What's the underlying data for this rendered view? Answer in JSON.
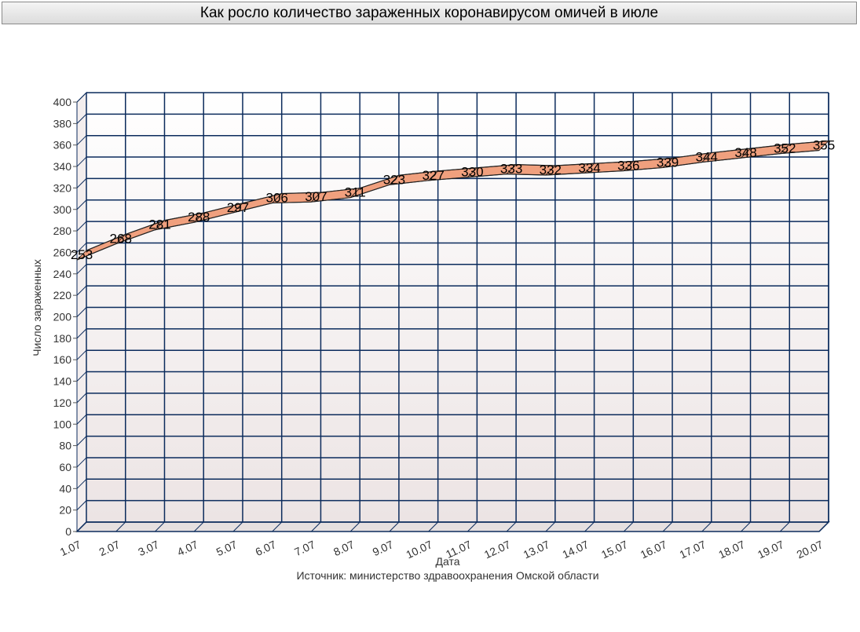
{
  "chart_data": {
    "type": "area",
    "title": "Как росло количество зараженных коронавирусом омичей в июле",
    "xlabel": "Дата",
    "ylabel": "Число зараженных",
    "source": "Источник: министерство здравоохранения Омской области",
    "categories": [
      "1.07",
      "2.07",
      "3.07",
      "4.07",
      "5.07",
      "6.07",
      "7.07",
      "8.07",
      "9.07",
      "10.07",
      "11.07",
      "12.07",
      "13.07",
      "14.07",
      "15.07",
      "16.07",
      "17.07",
      "18.07",
      "19.07",
      "20.07"
    ],
    "values": [
      253,
      268,
      281,
      288,
      297,
      306,
      307,
      311,
      323,
      327,
      330,
      333,
      332,
      334,
      336,
      339,
      344,
      348,
      352,
      355
    ],
    "ylim": [
      0,
      400
    ],
    "ytick_step": 20,
    "grid": true,
    "colors": {
      "line_fill": "#f0a07e",
      "grid": "#0b2b5c",
      "plot_bg_top": "#ffffff",
      "plot_bg_bottom": "#ece4e4"
    }
  }
}
